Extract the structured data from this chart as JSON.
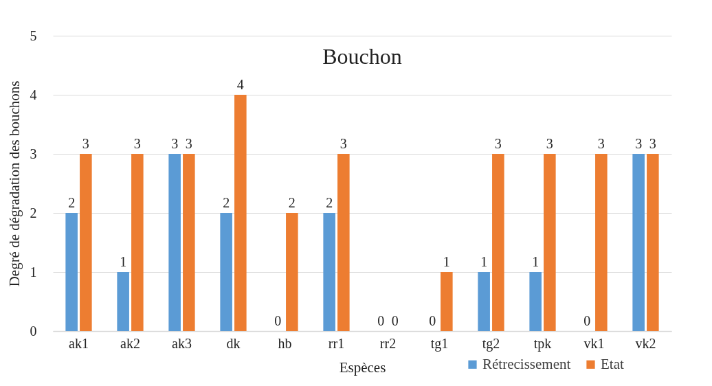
{
  "chart_data": {
    "type": "bar",
    "title": "Bouchon",
    "xlabel": "Espèces",
    "ylabel": "Degré de dégradation des bouchons",
    "categories": [
      "ak1",
      "ak2",
      "ak3",
      "dk",
      "hb",
      "rr1",
      "rr2",
      "tg1",
      "tg2",
      "tpk",
      "vk1",
      "vk2"
    ],
    "series": [
      {
        "name": "Rétrecissement",
        "color": "#5b9bd5",
        "values": [
          2,
          1,
          3,
          2,
          0,
          2,
          0,
          0,
          1,
          1,
          0,
          3
        ]
      },
      {
        "name": "Etat",
        "color": "#ed7d31",
        "values": [
          3,
          3,
          3,
          4,
          2,
          3,
          0,
          1,
          3,
          3,
          3,
          3
        ]
      }
    ],
    "ylim": [
      0,
      5
    ],
    "yticks": [
      0,
      1,
      2,
      3,
      4,
      5
    ],
    "grid": "y",
    "legend": "bottom right",
    "data_labels": true
  }
}
